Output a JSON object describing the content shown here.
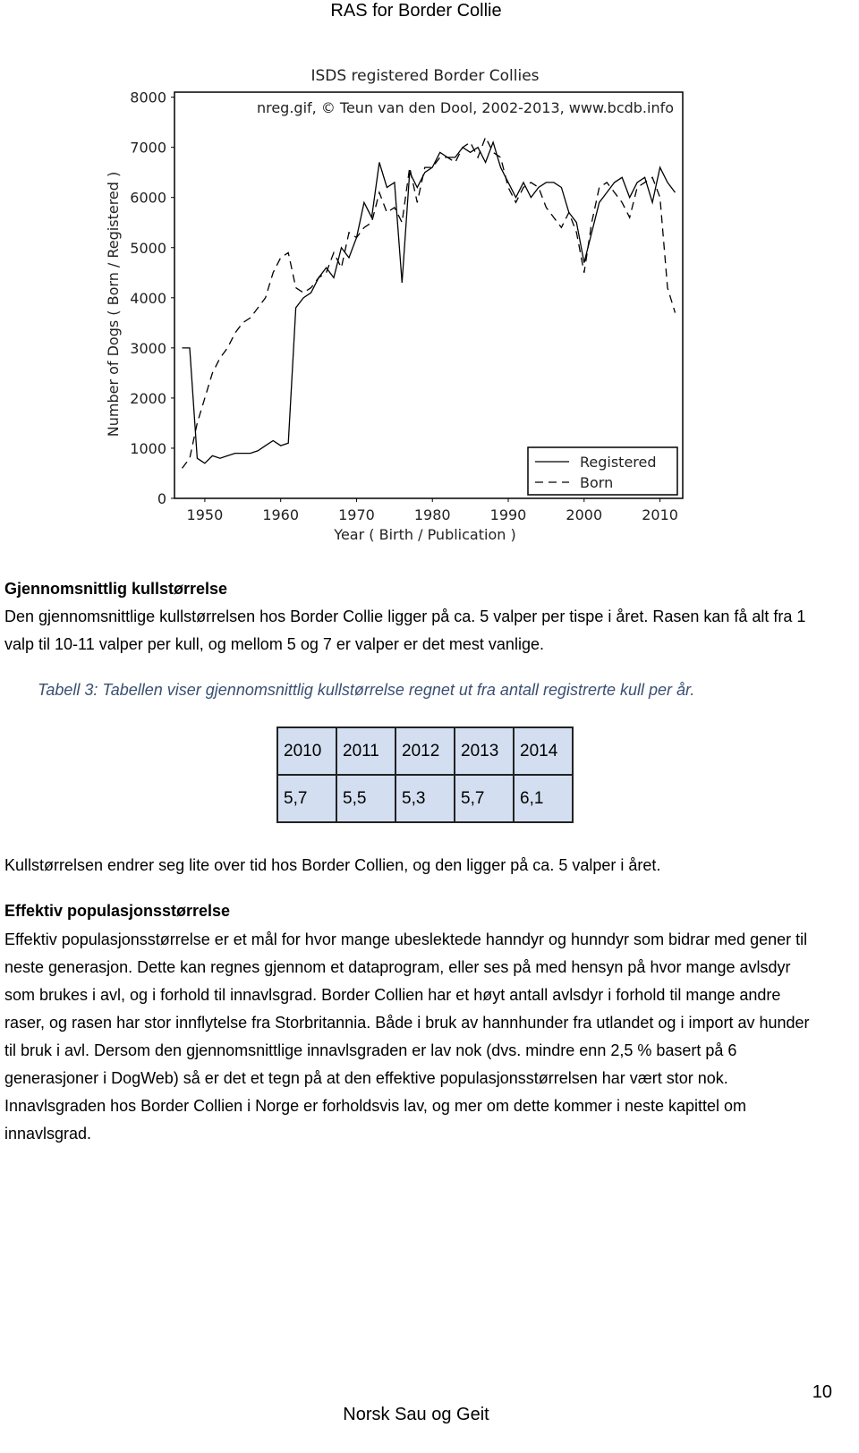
{
  "header": {
    "title": "RAS for Border Collie"
  },
  "chart_data": {
    "type": "line",
    "title": "ISDS registered Border Collies",
    "subtitle": "nreg.gif, © Teun van den Dool, 2002-2013, www.bcdb.info",
    "x_label": "Year ( Birth / Publication )",
    "y_label": "Number of Dogs ( Born / Registered )",
    "x": [
      1947,
      1948,
      1949,
      1950,
      1951,
      1952,
      1953,
      1954,
      1955,
      1956,
      1957,
      1958,
      1959,
      1960,
      1961,
      1962,
      1963,
      1964,
      1965,
      1966,
      1967,
      1968,
      1969,
      1970,
      1971,
      1972,
      1973,
      1974,
      1975,
      1976,
      1977,
      1978,
      1979,
      1980,
      1981,
      1982,
      1983,
      1984,
      1985,
      1986,
      1987,
      1988,
      1989,
      1990,
      1991,
      1992,
      1993,
      1994,
      1995,
      1996,
      1997,
      1998,
      1999,
      2000,
      2001,
      2002,
      2003,
      2004,
      2005,
      2006,
      2007,
      2008,
      2009,
      2010,
      2011,
      2012
    ],
    "series": [
      {
        "name": "Registered",
        "color": "#000000",
        "dash": "solid",
        "values": [
          3000,
          3000,
          800,
          700,
          850,
          800,
          850,
          900,
          900,
          900,
          950,
          1050,
          1150,
          1050,
          1100,
          3800,
          4000,
          4100,
          4400,
          4600,
          4400,
          5000,
          4800,
          5200,
          5900,
          5600,
          6700,
          6200,
          6300,
          4300,
          6500,
          6200,
          6500,
          6600,
          6900,
          6800,
          6800,
          7000,
          6900,
          7000,
          6700,
          7100,
          6600,
          6300,
          6000,
          6300,
          6000,
          6200,
          6300,
          6300,
          6200,
          5700,
          5500,
          4700,
          5300,
          5900,
          6100,
          6300,
          6400,
          6000,
          6300,
          6400,
          5900,
          6600,
          6300,
          6100
        ]
      },
      {
        "name": "Born",
        "color": "#000000",
        "dash": "dashed",
        "values": [
          600,
          800,
          1500,
          2000,
          2500,
          2800,
          3000,
          3300,
          3500,
          3600,
          3800,
          4000,
          4500,
          4800,
          4900,
          4200,
          4100,
          4200,
          4400,
          4500,
          4900,
          4600,
          5300,
          5200,
          5400,
          5500,
          6100,
          5700,
          5800,
          5500,
          6600,
          5900,
          6600,
          6600,
          6800,
          6800,
          6700,
          7000,
          7100,
          6800,
          7200,
          6900,
          6800,
          6200,
          5900,
          6200,
          6300,
          6200,
          5800,
          5600,
          5400,
          5700,
          5300,
          4500,
          5500,
          6200,
          6300,
          6100,
          5900,
          5600,
          6200,
          6300,
          6400,
          6000,
          4200,
          3700
        ]
      }
    ],
    "xlim": [
      1946,
      2013
    ],
    "ylim": [
      0,
      8100
    ],
    "xticks": [
      1950,
      1960,
      1970,
      1980,
      1990,
      2000,
      2010
    ],
    "yticks": [
      0,
      1000,
      2000,
      3000,
      4000,
      5000,
      6000,
      7000,
      8000
    ],
    "legend": "lower right"
  },
  "section1": {
    "heading": "Gjennomsnittlig kullstørrelse",
    "paragraph": "Den gjennomsnittlige kullstørrelsen hos Border Collie ligger på ca. 5 valper per tispe i året. Rasen kan få alt fra 1 valp til 10-11 valper per kull, og mellom 5 og 7 er valper er det mest vanlige.",
    "caption": "Tabell 3: Tabellen viser gjennomsnittlig kullstørrelse regnet ut fra antall registrerte kull per år."
  },
  "table": {
    "rows": [
      [
        2010,
        2011,
        2012,
        2013,
        2014
      ],
      [
        "5,7",
        "5,5",
        "5,3",
        "5,7",
        "6,1"
      ]
    ]
  },
  "section2": {
    "paragraph": "Kullstørrelsen endrer seg lite over tid hos Border Collien, og den ligger på ca. 5 valper i året."
  },
  "section3": {
    "heading": "Effektiv populasjonsstørrelse",
    "paragraph": "Effektiv populasjonsstørrelse er et mål for hvor mange ubeslektede hanndyr og hunndyr som bidrar med gener til neste generasjon. Dette kan regnes gjennom et dataprogram, eller ses på med hensyn på hvor mange avlsdyr som brukes i avl, og i forhold til innavlsgrad. Border Collien har et høyt antall avlsdyr i forhold til mange andre raser, og rasen har stor innflytelse fra Storbritannia. Både i bruk av hannhunder fra utlandet og i import av hunder til bruk i avl. Dersom den gjennomsnittlige innavlsgraden er lav nok (dvs. mindre enn 2,5 % basert på 6 generasjoner i DogWeb) så er det et tegn på at den effektive populasjonsstørrelsen har vært stor nok. Innavlsgraden hos Border Collien i Norge er forholdsvis lav, og mer om dette kommer i neste kapittel om innavlsgrad."
  },
  "footer": {
    "text": "Norsk Sau og Geit",
    "page": "10"
  }
}
